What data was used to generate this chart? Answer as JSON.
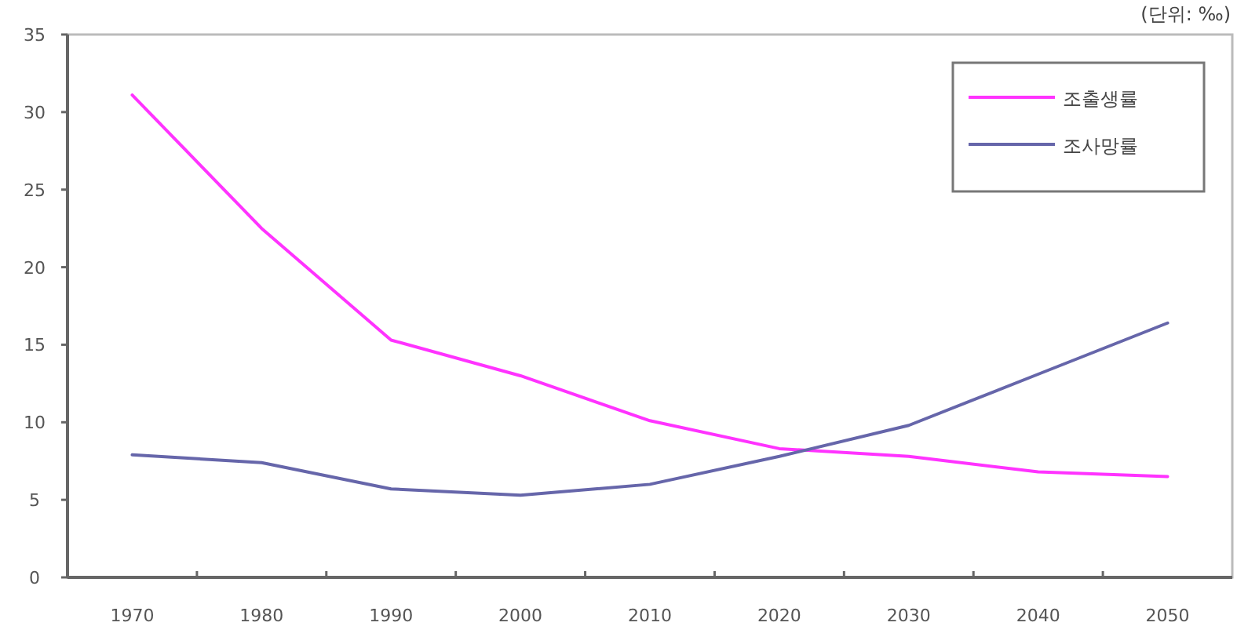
{
  "chart_data": {
    "type": "line",
    "annotations": [
      "(단위: ‰)"
    ],
    "categories": [
      "1970",
      "1980",
      "1990",
      "2000",
      "2010",
      "2020",
      "2030",
      "2040",
      "2050"
    ],
    "series": [
      {
        "name": "조출생률",
        "color": "#ff33ff",
        "values": [
          31.1,
          22.5,
          15.3,
          13.0,
          10.1,
          8.3,
          7.8,
          6.8,
          6.5
        ]
      },
      {
        "name": "조사망률",
        "color": "#6666aa",
        "values": [
          7.9,
          7.4,
          5.7,
          5.3,
          6.0,
          7.8,
          9.8,
          13.1,
          16.4
        ]
      }
    ],
    "ylim": [
      0,
      35
    ],
    "yticks": [
      0,
      5,
      10,
      15,
      20,
      25,
      30,
      35
    ],
    "grid": false,
    "legend": "top right",
    "marker": "none",
    "line_style": "solid"
  }
}
